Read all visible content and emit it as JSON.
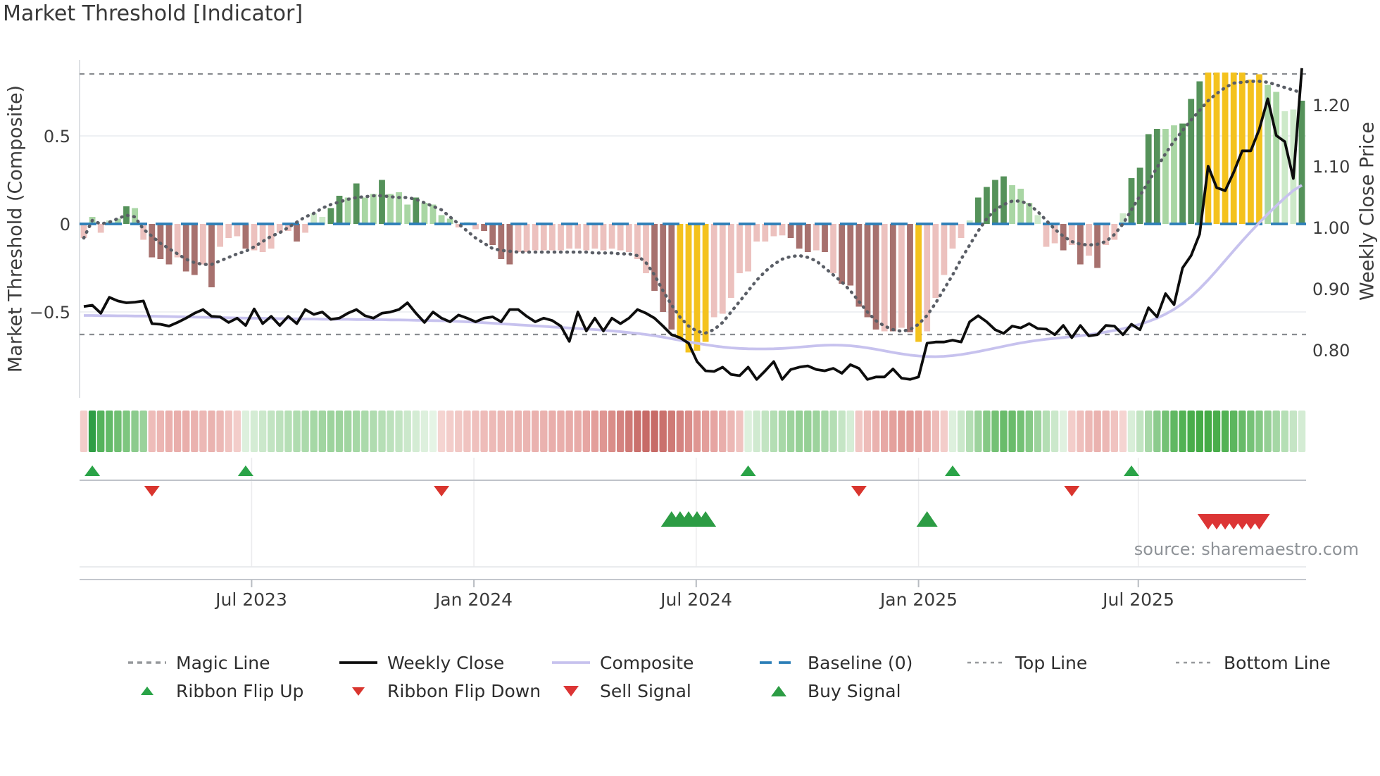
{
  "title": "Market Threshold [Indicator]",
  "source_note": "source: sharemaestro.com",
  "chart_data": {
    "type": "bar",
    "subtype": "weekly market-threshold indicator with overlay lines, ribbon strip and trade signals",
    "n_weeks": 144,
    "x_axis": {
      "tick_labels": [
        "Jul 2023",
        "Jan 2024",
        "Jul 2024",
        "Jan 2025",
        "Jul 2025"
      ],
      "tick_week_positions": [
        19.7,
        45.8,
        71.9,
        98.0,
        123.8
      ]
    },
    "left_axis": {
      "label": "Market Threshold (Composite)",
      "ticks": [
        "0.5",
        "0",
        "−0.5"
      ],
      "tick_values": [
        0.5,
        0,
        -0.5
      ],
      "range": [
        -0.99,
        0.93
      ]
    },
    "right_axis": {
      "label": "Weekly Close Price",
      "ticks": [
        "1.20",
        "1.10",
        "1.00",
        "0.90",
        "0.80"
      ],
      "tick_values": [
        1.2,
        1.1,
        1.0,
        0.9,
        0.8
      ],
      "range": [
        0.725,
        1.274
      ]
    },
    "reference_lines": {
      "baseline": 0,
      "top_line": 0.852,
      "bottom_line": -0.628
    },
    "line_colors": {
      "magic": "#5a5e66",
      "weekly_close": "#0d0d0d",
      "composite": "#c7c2ee",
      "baseline": "#2d7fb8",
      "top_bottom": "#898c90"
    },
    "bar_palette": {
      "dg": "#55925a",
      "lg": "#a9d6a4",
      "pg": "#cde9c9",
      "pk": "#ecc1be",
      "mr": "#a7716e",
      "yl": "#f4c21d"
    },
    "series": {
      "threshold_bars": {
        "values": [
          -0.08,
          0.04,
          -0.05,
          0.02,
          0.03,
          0.1,
          0.09,
          -0.09,
          -0.19,
          -0.2,
          -0.23,
          -0.19,
          -0.27,
          -0.29,
          -0.23,
          -0.36,
          -0.13,
          -0.08,
          -0.07,
          -0.14,
          -0.15,
          -0.16,
          -0.14,
          -0.05,
          -0.04,
          -0.1,
          -0.05,
          0.06,
          0.04,
          0.09,
          0.16,
          0.15,
          0.23,
          0.15,
          0.17,
          0.25,
          0.17,
          0.18,
          0.11,
          0.15,
          0.12,
          0.11,
          0.05,
          0.03,
          -0.02,
          0.01,
          -0.03,
          -0.04,
          -0.12,
          -0.2,
          -0.23,
          -0.16,
          -0.16,
          -0.15,
          -0.15,
          -0.15,
          -0.15,
          -0.14,
          -0.14,
          -0.15,
          -0.14,
          -0.15,
          -0.14,
          -0.15,
          -0.16,
          -0.2,
          -0.28,
          -0.38,
          -0.5,
          -0.6,
          -0.66,
          -0.73,
          -0.72,
          -0.67,
          -0.53,
          -0.51,
          -0.42,
          -0.28,
          -0.27,
          -0.1,
          -0.1,
          -0.07,
          -0.065,
          -0.08,
          -0.14,
          -0.16,
          -0.15,
          -0.16,
          -0.28,
          -0.34,
          -0.35,
          -0.47,
          -0.53,
          -0.6,
          -0.61,
          -0.61,
          -0.59,
          -0.615,
          -0.67,
          -0.61,
          -0.42,
          -0.29,
          -0.14,
          -0.08,
          0.02,
          0.15,
          0.21,
          0.25,
          0.27,
          0.22,
          0.2,
          0.12,
          0.05,
          -0.13,
          -0.11,
          -0.15,
          -0.12,
          -0.23,
          -0.18,
          -0.25,
          -0.12,
          -0.09,
          0.06,
          0.26,
          0.32,
          0.51,
          0.54,
          0.54,
          0.56,
          0.57,
          0.71,
          0.81,
          0.86,
          0.86,
          0.86,
          0.86,
          0.86,
          0.82,
          0.85,
          0.79,
          0.75,
          0.64,
          0.65,
          0.7
        ],
        "colors": [
          "pk",
          "lg",
          "pk",
          "pg",
          "lg",
          "dg",
          "lg",
          "pk",
          "mr",
          "mr",
          "mr",
          "pk",
          "mr",
          "mr",
          "pk",
          "mr",
          "pk",
          "pk",
          "pk",
          "mr",
          "pk",
          "pk",
          "pk",
          "pk",
          "pk",
          "mr",
          "pk",
          "pg",
          "pg",
          "dg",
          "dg",
          "lg",
          "dg",
          "lg",
          "lg",
          "dg",
          "lg",
          "lg",
          "lg",
          "dg",
          "lg",
          "lg",
          "lg",
          "lg",
          "pk",
          "pg",
          "pk",
          "mr",
          "mr",
          "mr",
          "mr",
          "pk",
          "pk",
          "pk",
          "pk",
          "pk",
          "pk",
          "pk",
          "pk",
          "pk",
          "pk",
          "pk",
          "pk",
          "pk",
          "pk",
          "pk",
          "pk",
          "mr",
          "mr",
          "mr",
          "yl",
          "yl",
          "yl",
          "yl",
          "pk",
          "pk",
          "pk",
          "pk",
          "pk",
          "pk",
          "pk",
          "pk",
          "pk",
          "mr",
          "mr",
          "mr",
          "pk",
          "mr",
          "pk",
          "mr",
          "mr",
          "mr",
          "mr",
          "mr",
          "pk",
          "mr",
          "pk",
          "mr",
          "yl",
          "pk",
          "pk",
          "pk",
          "pk",
          "pk",
          "pg",
          "dg",
          "dg",
          "dg",
          "dg",
          "lg",
          "lg",
          "lg",
          "pg",
          "pk",
          "pk",
          "mr",
          "pk",
          "mr",
          "pk",
          "mr",
          "pk",
          "pk",
          "pg",
          "dg",
          "dg",
          "dg",
          "dg",
          "lg",
          "lg",
          "dg",
          "dg",
          "dg",
          "yl",
          "yl",
          "yl",
          "yl",
          "yl",
          "yl",
          "yl",
          "lg",
          "lg",
          "pg",
          "pg",
          "dg"
        ]
      },
      "magic_line": [
        -0.08,
        0.02,
        0.0,
        0.01,
        0.03,
        0.05,
        0.04,
        -0.03,
        -0.07,
        -0.11,
        -0.14,
        -0.17,
        -0.2,
        -0.22,
        -0.23,
        -0.23,
        -0.21,
        -0.19,
        -0.17,
        -0.155,
        -0.13,
        -0.1,
        -0.07,
        -0.05,
        -0.02,
        0.01,
        0.04,
        0.06,
        0.09,
        0.11,
        0.125,
        0.14,
        0.15,
        0.155,
        0.16,
        0.16,
        0.155,
        0.15,
        0.15,
        0.14,
        0.12,
        0.1,
        0.08,
        0.04,
        0.0,
        -0.04,
        -0.08,
        -0.11,
        -0.14,
        -0.15,
        -0.155,
        -0.16,
        -0.16,
        -0.16,
        -0.16,
        -0.16,
        -0.16,
        -0.16,
        -0.16,
        -0.16,
        -0.165,
        -0.165,
        -0.165,
        -0.17,
        -0.17,
        -0.18,
        -0.22,
        -0.29,
        -0.38,
        -0.46,
        -0.53,
        -0.58,
        -0.61,
        -0.62,
        -0.6,
        -0.56,
        -0.5,
        -0.44,
        -0.38,
        -0.32,
        -0.27,
        -0.23,
        -0.2,
        -0.185,
        -0.18,
        -0.19,
        -0.21,
        -0.25,
        -0.29,
        -0.33,
        -0.38,
        -0.44,
        -0.5,
        -0.55,
        -0.58,
        -0.6,
        -0.61,
        -0.6,
        -0.57,
        -0.52,
        -0.45,
        -0.37,
        -0.29,
        -0.2,
        -0.12,
        -0.04,
        0.03,
        0.08,
        0.11,
        0.13,
        0.13,
        0.11,
        0.07,
        0.02,
        -0.03,
        -0.07,
        -0.1,
        -0.115,
        -0.12,
        -0.115,
        -0.1,
        -0.06,
        0.0,
        0.08,
        0.16,
        0.24,
        0.32,
        0.4,
        0.47,
        0.53,
        0.59,
        0.645,
        0.7,
        0.74,
        0.775,
        0.8,
        0.805,
        0.81,
        0.81,
        0.805,
        0.79,
        0.775,
        0.76,
        0.745
      ],
      "weekly_close": [
        0.871,
        0.873,
        0.86,
        0.886,
        0.88,
        0.877,
        0.878,
        0.88,
        0.843,
        0.842,
        0.839,
        0.845,
        0.852,
        0.86,
        0.866,
        0.855,
        0.854,
        0.845,
        0.852,
        0.84,
        0.867,
        0.843,
        0.855,
        0.84,
        0.855,
        0.843,
        0.866,
        0.858,
        0.862,
        0.85,
        0.852,
        0.86,
        0.866,
        0.856,
        0.852,
        0.86,
        0.862,
        0.866,
        0.877,
        0.86,
        0.845,
        0.862,
        0.852,
        0.846,
        0.857,
        0.852,
        0.846,
        0.852,
        0.854,
        0.846,
        0.866,
        0.866,
        0.855,
        0.846,
        0.852,
        0.848,
        0.839,
        0.814,
        0.862,
        0.831,
        0.852,
        0.831,
        0.852,
        0.843,
        0.852,
        0.866,
        0.86,
        0.852,
        0.839,
        0.825,
        0.82,
        0.811,
        0.781,
        0.766,
        0.765,
        0.772,
        0.76,
        0.758,
        0.772,
        0.752,
        0.766,
        0.781,
        0.752,
        0.768,
        0.772,
        0.774,
        0.768,
        0.766,
        0.77,
        0.762,
        0.776,
        0.77,
        0.752,
        0.756,
        0.756,
        0.769,
        0.754,
        0.752,
        0.756,
        0.811,
        0.813,
        0.813,
        0.816,
        0.813,
        0.846,
        0.856,
        0.846,
        0.833,
        0.827,
        0.839,
        0.836,
        0.843,
        0.835,
        0.834,
        0.825,
        0.84,
        0.82,
        0.84,
        0.823,
        0.825,
        0.84,
        0.839,
        0.825,
        0.842,
        0.833,
        0.869,
        0.854,
        0.892,
        0.874,
        0.934,
        0.954,
        0.989,
        1.1,
        1.065,
        1.06,
        1.09,
        1.125,
        1.125,
        1.16,
        1.21,
        1.15,
        1.14,
        1.08,
        1.26
      ],
      "composite": [
        -0.52,
        -0.52,
        -0.521,
        -0.521,
        -0.522,
        -0.522,
        -0.523,
        -0.523,
        -0.524,
        -0.525,
        -0.526,
        -0.527,
        -0.528,
        -0.529,
        -0.53,
        -0.531,
        -0.532,
        -0.533,
        -0.534,
        -0.535,
        -0.535,
        -0.536,
        -0.537,
        -0.538,
        -0.538,
        -0.539,
        -0.54,
        -0.54,
        -0.541,
        -0.541,
        -0.542,
        -0.542,
        -0.543,
        -0.543,
        -0.544,
        -0.544,
        -0.545,
        -0.545,
        -0.546,
        -0.547,
        -0.548,
        -0.549,
        -0.55,
        -0.552,
        -0.554,
        -0.556,
        -0.558,
        -0.561,
        -0.564,
        -0.567,
        -0.57,
        -0.573,
        -0.576,
        -0.579,
        -0.582,
        -0.585,
        -0.588,
        -0.591,
        -0.594,
        -0.597,
        -0.6,
        -0.604,
        -0.608,
        -0.612,
        -0.617,
        -0.622,
        -0.628,
        -0.635,
        -0.643,
        -0.652,
        -0.661,
        -0.67,
        -0.678,
        -0.686,
        -0.693,
        -0.699,
        -0.704,
        -0.707,
        -0.709,
        -0.71,
        -0.71,
        -0.709,
        -0.707,
        -0.704,
        -0.7,
        -0.696,
        -0.692,
        -0.689,
        -0.688,
        -0.689,
        -0.692,
        -0.697,
        -0.704,
        -0.712,
        -0.721,
        -0.73,
        -0.738,
        -0.745,
        -0.75,
        -0.753,
        -0.754,
        -0.752,
        -0.748,
        -0.742,
        -0.734,
        -0.725,
        -0.715,
        -0.705,
        -0.695,
        -0.685,
        -0.676,
        -0.668,
        -0.661,
        -0.655,
        -0.65,
        -0.645,
        -0.64,
        -0.635,
        -0.629,
        -0.622,
        -0.614,
        -0.605,
        -0.595,
        -0.583,
        -0.57,
        -0.554,
        -0.535,
        -0.512,
        -0.485,
        -0.452,
        -0.413,
        -0.368,
        -0.318,
        -0.264,
        -0.208,
        -0.152,
        -0.097,
        -0.044,
        0.007,
        0.056,
        0.103,
        0.148,
        0.19,
        0.22
      ]
    },
    "ribbon_colors": [
      "#f3cdca",
      "#2f9e45",
      "#55b35c",
      "#63ba68",
      "#70bf72",
      "#7ec67f",
      "#8ccb8d",
      "#9ad29b",
      "#eebcb9",
      "#ecb6b3",
      "#eab0ad",
      "#e9aeab",
      "#e9aeab",
      "#eab2af",
      "#ecb8b5",
      "#eab3b0",
      "#ecb8b5",
      "#f0c3c0",
      "#f3cdca",
      "#ddf0dd",
      "#d4ecd4",
      "#cbe8cb",
      "#c2e4c2",
      "#bce1bc",
      "#b6dfb6",
      "#b0dcb0",
      "#abdaab",
      "#a6d8a6",
      "#a1d5a1",
      "#9dd39d",
      "#9dd39d",
      "#a1d5a1",
      "#a6d8a6",
      "#abdaab",
      "#b0dcb0",
      "#b6dfb6",
      "#bce1bc",
      "#c2e4c2",
      "#cbe8cb",
      "#d4ecd4",
      "#ddf0dd",
      "#e5f4e5",
      "#f5d4d1",
      "#f3cdca",
      "#f1c8c5",
      "#f0c3c0",
      "#efc0bd",
      "#eebcb9",
      "#edbab7",
      "#ecb8b5",
      "#ecb8b5",
      "#ebb5b2",
      "#ebb5b2",
      "#eab2af",
      "#eab2af",
      "#e9aeab",
      "#e9aeab",
      "#e8aba8",
      "#e8aba8",
      "#e6a5a2",
      "#e39e9a",
      "#df9692",
      "#da8d89",
      "#d48380",
      "#cf7a76",
      "#ca716d",
      "#c76b67",
      "#c76b67",
      "#ca716d",
      "#cf7a76",
      "#d48380",
      "#da8d89",
      "#df9692",
      "#e39e9a",
      "#e6a5a2",
      "#e9aeab",
      "#ecb8b5",
      "#f0c3c0",
      "#ddf0dd",
      "#d0ead0",
      "#c2e4c2",
      "#b4deb4",
      "#a8d8a8",
      "#9dd39d",
      "#96d096",
      "#96d096",
      "#9dd39d",
      "#a8d8a8",
      "#b4deb4",
      "#c5e5c5",
      "#d6edd6",
      "#f1c8c5",
      "#eebcb9",
      "#eab2af",
      "#e7a8a5",
      "#e4a19d",
      "#e29b97",
      "#e29b97",
      "#e4a19d",
      "#e8aba8",
      "#eebcb9",
      "#f3cdca",
      "#ddf0dd",
      "#cbe8cb",
      "#b4deb4",
      "#9dd39d",
      "#85c985",
      "#74c175",
      "#6abc6b",
      "#6abc6b",
      "#74c175",
      "#85c985",
      "#9dd39d",
      "#b4deb4",
      "#cbe8cb",
      "#e0f1e0",
      "#f3cdca",
      "#efc0bd",
      "#ecb8b5",
      "#eab2af",
      "#ecb8b5",
      "#f0c3c0",
      "#f5d4d1",
      "#d8eed8",
      "#c2e4c2",
      "#a8d8a8",
      "#8ccb8d",
      "#74c175",
      "#60b862",
      "#52b254",
      "#49ad4b",
      "#45ab47",
      "#45ab47",
      "#49ad4b",
      "#52b254",
      "#5cb65e",
      "#68bb69",
      "#76c277",
      "#85c985",
      "#95cf95",
      "#a5d7a5",
      "#b5dfb5",
      "#c5e5c5",
      "#d4ecd4"
    ],
    "signals": {
      "ribbon_flip_up_weeks": [
        1,
        19,
        78,
        102,
        123
      ],
      "ribbon_flip_down_weeks": [
        8,
        42,
        91,
        116
      ],
      "buy_signal_weeks": [
        69,
        70,
        71,
        72,
        73,
        99
      ],
      "sell_signal_weeks": [
        132,
        133,
        134,
        135,
        136,
        137,
        138
      ],
      "marker_colors": {
        "flip_up": "#2aa347",
        "flip_down": "#d9352e",
        "buy": "#2c9c44",
        "sell": "#dc3535"
      }
    }
  },
  "legend": {
    "row1": [
      {
        "label": "Magic Line",
        "swatch": "magic"
      },
      {
        "label": "Weekly Close",
        "swatch": "weekly_close"
      },
      {
        "label": "Composite",
        "swatch": "composite"
      },
      {
        "label": "Baseline (0)",
        "swatch": "baseline"
      },
      {
        "label": "Top Line",
        "swatch": "refline"
      },
      {
        "label": "Bottom Line",
        "swatch": "refline"
      }
    ],
    "row2": [
      {
        "label": "Ribbon Flip Up",
        "marker": "flip_up"
      },
      {
        "label": "Ribbon Flip Down",
        "marker": "flip_down"
      },
      {
        "label": "Sell Signal",
        "marker": "sell"
      },
      {
        "label": "Buy Signal",
        "marker": "buy"
      }
    ]
  }
}
